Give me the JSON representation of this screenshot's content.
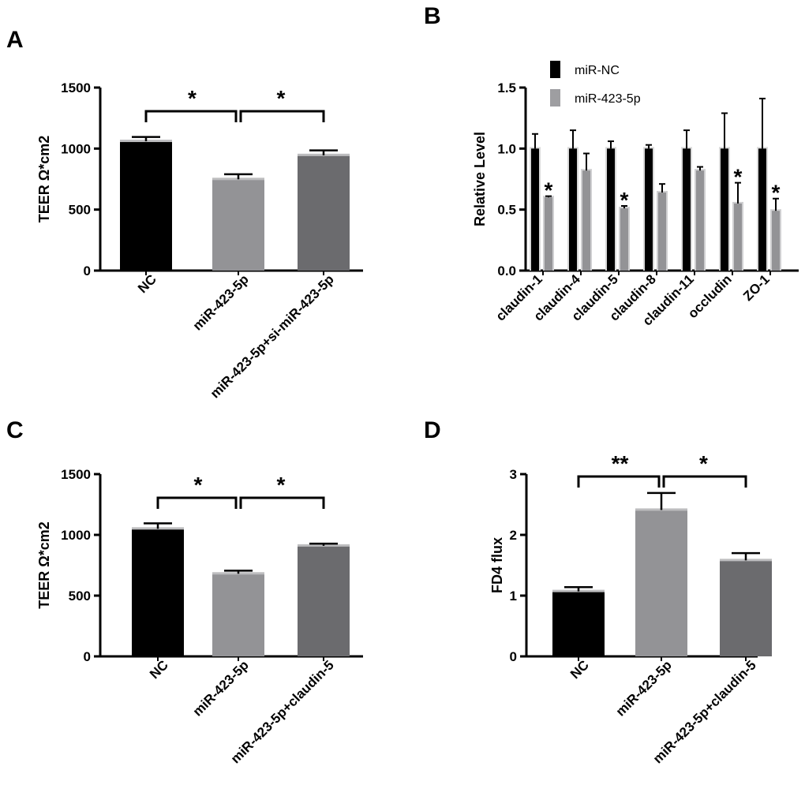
{
  "colors": {
    "nc": "#000000",
    "mir": "#939396",
    "treated": "#6b6b6e",
    "legend_nc": "#000000",
    "legend_mir": "#9e9ea1"
  },
  "chart_data": [
    {
      "panel": "A",
      "type": "bar",
      "ylabel": "TEER Ω*cm2",
      "ylim": [
        0,
        1500
      ],
      "yticks": [
        0,
        500,
        1000,
        1500
      ],
      "categories": [
        "NC",
        "miR-423-5p",
        "miR-423-5p+si-miR-423-5p"
      ],
      "values": [
        1060,
        748,
        945
      ],
      "errors": [
        35,
        42,
        40
      ],
      "bar_colors": [
        "nc",
        "mir",
        "treated"
      ],
      "brackets": [
        {
          "from": 0,
          "to": 1,
          "label": "*"
        },
        {
          "from": 1,
          "to": 2,
          "label": "*"
        }
      ]
    },
    {
      "panel": "B",
      "type": "bar",
      "ylabel": "Relative Level",
      "ylim": [
        0,
        1.5
      ],
      "yticks": [
        0.0,
        0.5,
        1.0,
        1.5
      ],
      "categories": [
        "claudin-1",
        "claudin-4",
        "claudin-5",
        "claudin-8",
        "claudin-11",
        "occludin",
        "ZO-1"
      ],
      "series": [
        {
          "name": "miR-NC",
          "color": "nc",
          "values": [
            1.0,
            1.0,
            1.0,
            1.0,
            1.0,
            1.0,
            1.0
          ],
          "errors": [
            0.12,
            0.15,
            0.06,
            0.03,
            0.15,
            0.29,
            0.41
          ]
        },
        {
          "name": "miR-423-5p",
          "color": "mir",
          "values": [
            0.6,
            0.82,
            0.51,
            0.64,
            0.82,
            0.55,
            0.49
          ],
          "errors": [
            0.01,
            0.14,
            0.02,
            0.07,
            0.03,
            0.17,
            0.1
          ]
        }
      ],
      "stars": [
        "*",
        "",
        "*",
        "",
        "",
        "*",
        "*"
      ],
      "legend": "top-left"
    },
    {
      "panel": "C",
      "type": "bar",
      "ylabel": "TEER Ω*cm2",
      "ylim": [
        0,
        1500
      ],
      "yticks": [
        0,
        500,
        1000,
        1500
      ],
      "categories": [
        "NC",
        "miR-423-5p",
        "miR-423-5p+claudin-5"
      ],
      "values": [
        1050,
        680,
        910
      ],
      "errors": [
        45,
        25,
        18
      ],
      "bar_colors": [
        "nc",
        "mir",
        "treated"
      ],
      "brackets": [
        {
          "from": 0,
          "to": 1,
          "label": "*"
        },
        {
          "from": 1,
          "to": 2,
          "label": "*"
        }
      ]
    },
    {
      "panel": "D",
      "type": "bar",
      "ylabel": "FD4 flux",
      "ylim": [
        0,
        3
      ],
      "yticks": [
        0,
        1,
        2,
        3
      ],
      "categories": [
        "NC",
        "miR-423-5p",
        "miR-423-5p+claudin-5"
      ],
      "values": [
        1.07,
        2.41,
        1.58
      ],
      "errors": [
        0.07,
        0.28,
        0.12
      ],
      "bar_colors": [
        "nc",
        "mir",
        "treated"
      ],
      "brackets": [
        {
          "from": 0,
          "to": 1,
          "label": "**"
        },
        {
          "from": 1,
          "to": 2,
          "label": "*"
        }
      ]
    }
  ]
}
